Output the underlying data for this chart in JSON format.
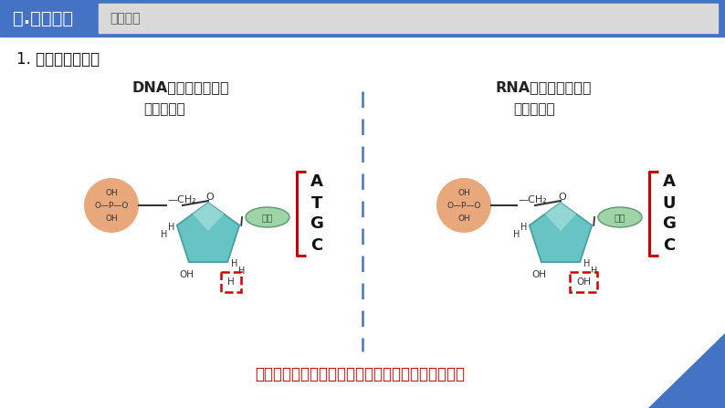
{
  "title_bar_color": "#4472C4",
  "title_bar_text": "一.知识梳理",
  "title_bar_subtext": "必备知识",
  "title_bar_subtext_bg": "#D9D9D9",
  "bg_color": "#FFFFFF",
  "section_title": "1. 核酸的结构层次",
  "dna_title": "DNA的基本构成单位",
  "rna_title": "RNA的基本构成单位",
  "dna_subtitle": "脱氧核苷酸",
  "rna_subtitle": "核糖核苷酸",
  "dna_bases": [
    "A",
    "T",
    "G",
    "C"
  ],
  "rna_bases": [
    "A",
    "U",
    "G",
    "C"
  ],
  "phosphate_color": "#E8A87C",
  "sugar_color": "#6DC8C8",
  "sugar_top_color": "#B8E4E4",
  "base_box_color": "#A8D4B0",
  "base_text_color": "#2F5F2F",
  "base_circle_color": "#CC0000",
  "dashed_box_color": "#CC0000",
  "bracket_color": "#CC0000",
  "bases_letter_color": "#111111",
  "bottom_question_color": "#CC0000",
  "bottom_question": "核苷酸共有几种？组成核苷酸的含氮碱基共有几种？",
  "dashed_divider_color": "#4472C4",
  "corner_triangle_color": "#4472C4",
  "dark_text": "#333333",
  "label_text": "#222222"
}
